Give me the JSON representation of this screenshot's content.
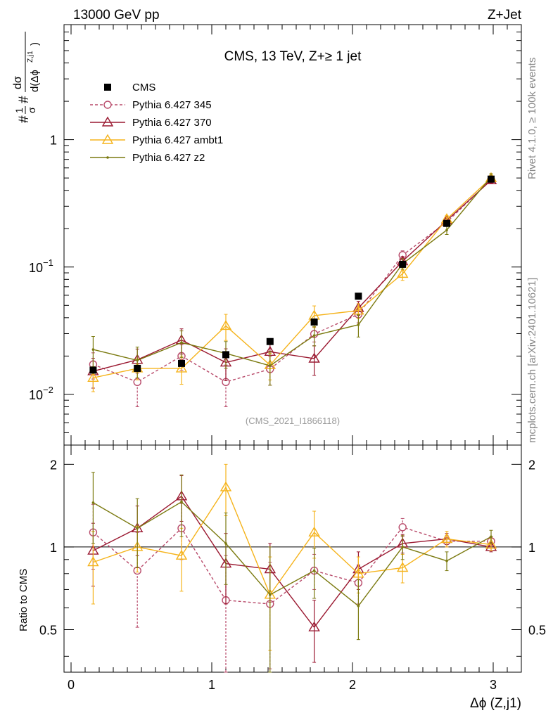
{
  "header": {
    "left_label": "13000 GeV pp",
    "right_label": "Z+Jet"
  },
  "side_labels": {
    "rivet": "Rivet 4.1.0, ≥ 100k events",
    "mcplots": "mcplots.cern.ch [arXiv:2401.10621]"
  },
  "colors": {
    "cms": "#000000",
    "p345": "#b84a6a",
    "p370": "#9a1830",
    "ambt1": "#f5b31b",
    "z2": "#7b7a10"
  },
  "chart_data": {
    "type": "line",
    "title": "CMS, 13 TeV, Z+≥ 1 jet",
    "watermark": "(CMS_2021_I1866118)",
    "xlabel": "Δϕ (Z,j1)",
    "ylabel_main": "#1/σ # dσ/d(Δϕ^{Z,j1})",
    "ylabel_ratio": "Ratio to CMS",
    "xlim": [
      -0.05,
      3.2
    ],
    "ylim_main": [
      0.004,
      8
    ],
    "ylim_ratio": [
      0.35,
      2.35
    ],
    "x_ticks": [
      0,
      1,
      2,
      3
    ],
    "y_ticks_main": [
      "10^-2",
      "10^-1",
      "1"
    ],
    "y_ticks_ratio": [
      "0.5",
      "1",
      "2"
    ],
    "legend_entries": [
      "CMS",
      "Pythia 6.427 345",
      "Pythia 6.427 370",
      "Pythia 6.427 ambt1",
      "Pythia 6.427 z2"
    ],
    "x": [
      0.157,
      0.471,
      0.785,
      1.1,
      1.414,
      1.728,
      2.042,
      2.356,
      2.67,
      2.985
    ],
    "x_halfwidth": 0.157,
    "data": {
      "name": "CMS",
      "values": [
        0.0155,
        0.016,
        0.0175,
        0.0205,
        0.026,
        0.037,
        0.059,
        0.105,
        0.22,
        0.49
      ]
    },
    "series": [
      {
        "name": "Pythia 6.427 345",
        "key": "p345",
        "marker": "circle",
        "dash": true,
        "values": [
          0.0172,
          0.0125,
          0.02,
          0.0125,
          0.0158,
          0.0298,
          0.0425,
          0.124,
          0.225,
          0.485
        ],
        "err": [
          0.004,
          0.0045,
          0.0045,
          0.0045,
          0.004,
          0.004,
          0.006,
          0.01,
          0.01,
          0.02
        ],
        "ratio": [
          1.13,
          0.82,
          1.17,
          0.64,
          0.62,
          0.82,
          0.74,
          1.18,
          1.05,
          1.05
        ],
        "ratio_err": [
          0.3,
          0.31,
          0.27,
          0.29,
          0.26,
          0.12,
          0.12,
          0.09,
          0.05,
          0.04
        ]
      },
      {
        "name": "Pythia 6.427 370",
        "key": "p370",
        "marker": "triangle",
        "dash": false,
        "values": [
          0.0152,
          0.0187,
          0.0267,
          0.0178,
          0.0216,
          0.0191,
          0.0477,
          0.111,
          0.232,
          0.48
        ],
        "err": [
          0.004,
          0.004,
          0.006,
          0.005,
          0.005,
          0.005,
          0.006,
          0.01,
          0.01,
          0.02
        ],
        "ratio": [
          0.97,
          1.17,
          1.53,
          0.87,
          0.83,
          0.51,
          0.83,
          1.03,
          1.07,
          1.0
        ],
        "ratio_err": [
          0.25,
          0.24,
          0.29,
          0.25,
          0.2,
          0.13,
          0.13,
          0.08,
          0.05,
          0.04
        ]
      },
      {
        "name": "Pythia 6.427 ambt1",
        "key": "ambt1",
        "marker": "triangle",
        "dash": false,
        "values": [
          0.0135,
          0.016,
          0.016,
          0.0345,
          0.017,
          0.0415,
          0.0455,
          0.0885,
          0.238,
          0.5
        ],
        "err": [
          0.003,
          0.003,
          0.004,
          0.008,
          0.004,
          0.008,
          0.006,
          0.01,
          0.015,
          0.02
        ],
        "ratio": [
          0.88,
          1.0,
          0.93,
          1.65,
          0.67,
          1.13,
          0.8,
          0.84,
          1.07,
          1.02
        ],
        "ratio_err": [
          0.26,
          0.19,
          0.24,
          0.35,
          0.25,
          0.22,
          0.12,
          0.1,
          0.07,
          0.05
        ]
      },
      {
        "name": "Pythia 6.427 z2",
        "key": "z2",
        "marker": "dot",
        "dash": false,
        "values": [
          0.0225,
          0.0185,
          0.0255,
          0.021,
          0.0168,
          0.029,
          0.0352,
          0.106,
          0.195,
          0.51
        ],
        "err": [
          0.006,
          0.005,
          0.006,
          0.005,
          0.005,
          0.005,
          0.007,
          0.01,
          0.015,
          0.03
        ],
        "ratio": [
          1.45,
          1.17,
          1.46,
          1.03,
          0.67,
          0.82,
          0.61,
          1.0,
          0.89,
          1.09
        ],
        "ratio_err": [
          0.42,
          0.33,
          0.37,
          0.3,
          0.33,
          0.17,
          0.15,
          0.1,
          0.07,
          0.06
        ]
      }
    ]
  }
}
